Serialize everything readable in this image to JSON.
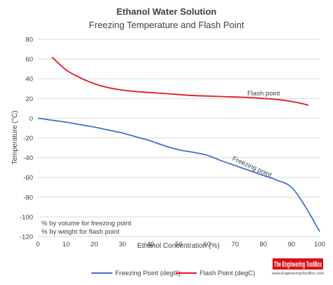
{
  "chart_data": {
    "type": "line",
    "title": "Ethanol Water Solution",
    "subtitle": "Freezing Temperature and Flash Point",
    "xlabel": "Ethanol Concentration (%)",
    "ylabel": "Temperature (°C)",
    "xlim": [
      0,
      100
    ],
    "ylim": [
      -120,
      80
    ],
    "x_ticks": [
      0,
      10,
      20,
      30,
      40,
      50,
      60,
      70,
      80,
      90,
      100
    ],
    "y_ticks": [
      80,
      60,
      40,
      20,
      0,
      -20,
      -40,
      -60,
      -80,
      -100,
      -120
    ],
    "grid": "horizontal",
    "legend_position": "bottom",
    "notes": [
      "% by volume for freezing point",
      "% by weight for flash point"
    ],
    "series": [
      {
        "name": "Freezing Point (degC)",
        "color": "#4472c4",
        "label": "Freezing point",
        "x": [
          0,
          5,
          10,
          15,
          20,
          25,
          30,
          35,
          40,
          45,
          50,
          55,
          60,
          65,
          70,
          75,
          80,
          85,
          90,
          95,
          100
        ],
        "y": [
          0,
          -2,
          -4,
          -6.5,
          -9,
          -12,
          -15,
          -19,
          -23,
          -28,
          -32,
          -34.5,
          -37.5,
          -43,
          -48,
          -53,
          -58,
          -63,
          -70,
          -90,
          -115
        ]
      },
      {
        "name": "Flash Point (degC)",
        "color": "#e8141e",
        "label": "Flash point",
        "x": [
          5,
          10,
          15,
          20,
          25,
          30,
          35,
          40,
          45,
          50,
          55,
          60,
          65,
          70,
          75,
          80,
          85,
          90,
          95,
          96
        ],
        "y": [
          62,
          49,
          41,
          35,
          31,
          28.5,
          27,
          26,
          25,
          24,
          23,
          22.5,
          22,
          21.5,
          21,
          20,
          19,
          17,
          14,
          13
        ]
      }
    ]
  },
  "logo": {
    "text": "The Engineering ToolBox",
    "sub": "www.EngineeringToolBox.com"
  }
}
